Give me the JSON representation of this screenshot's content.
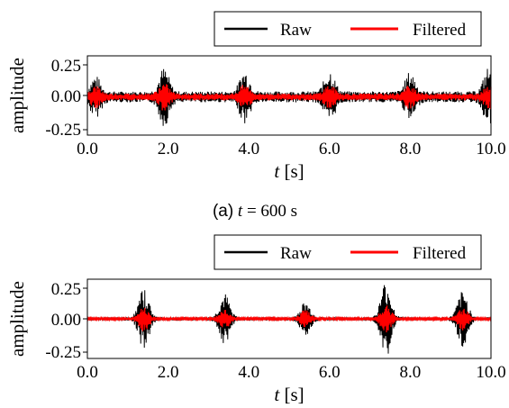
{
  "chart_data": [
    {
      "type": "line",
      "xlabel_var": "t",
      "xlabel_unit": "[s]",
      "ylabel": "amplitude",
      "xlim": [
        0,
        10
      ],
      "ylim": [
        -0.28,
        0.3
      ],
      "xticks": [
        "0.0",
        "2.0",
        "4.0",
        "6.0",
        "8.0",
        "10.0"
      ],
      "yticks": [
        "0.25",
        "0.00",
        "-0.25"
      ],
      "ytick_values": [
        0.25,
        0.0,
        -0.25
      ],
      "legend": [
        "Raw",
        "Filtered"
      ],
      "legend_position": "top-right, above plot",
      "caption": {
        "prefix": "(a)",
        "var": "t",
        "rest": "= 600 s"
      },
      "series": [
        {
          "name": "Raw",
          "color": "#000000",
          "bursts": [
            [
              0.2,
              0.12
            ],
            [
              1.9,
              0.18
            ],
            [
              3.9,
              0.16
            ],
            [
              6.0,
              0.17
            ],
            [
              8.0,
              0.15
            ],
            [
              9.95,
              0.19
            ]
          ],
          "baseline": 0.04
        },
        {
          "name": "Filtered",
          "color": "#ff0000",
          "bursts": [
            [
              0.2,
              0.06
            ],
            [
              1.9,
              0.08
            ],
            [
              3.9,
              0.07
            ],
            [
              6.0,
              0.07
            ],
            [
              8.0,
              0.07
            ],
            [
              9.95,
              0.07
            ]
          ],
          "baseline": 0.025
        }
      ]
    },
    {
      "type": "line",
      "xlabel_var": "t",
      "xlabel_unit": "[s]",
      "ylabel": "amplitude",
      "xlim": [
        0,
        10
      ],
      "ylim": [
        -0.3,
        0.3
      ],
      "xticks": [
        "0.0",
        "2.0",
        "4.0",
        "6.0",
        "8.0",
        "10.0"
      ],
      "yticks": [
        "0.25",
        "0.00",
        "-0.25"
      ],
      "ytick_values": [
        0.25,
        0.0,
        -0.25
      ],
      "legend": [
        "Raw",
        "Filtered"
      ],
      "legend_position": "top-right, above plot",
      "series": [
        {
          "name": "Raw",
          "color": "#000000",
          "bursts": [
            [
              1.4,
              0.22
            ],
            [
              3.4,
              0.18
            ],
            [
              5.4,
              0.12
            ],
            [
              7.4,
              0.28
            ],
            [
              9.3,
              0.2
            ]
          ],
          "baseline": 0.012
        },
        {
          "name": "Filtered",
          "color": "#ff0000",
          "bursts": [
            [
              1.4,
              0.09
            ],
            [
              3.4,
              0.07
            ],
            [
              5.4,
              0.06
            ],
            [
              7.4,
              0.1
            ],
            [
              9.3,
              0.08
            ]
          ],
          "baseline": 0.008
        }
      ]
    }
  ]
}
